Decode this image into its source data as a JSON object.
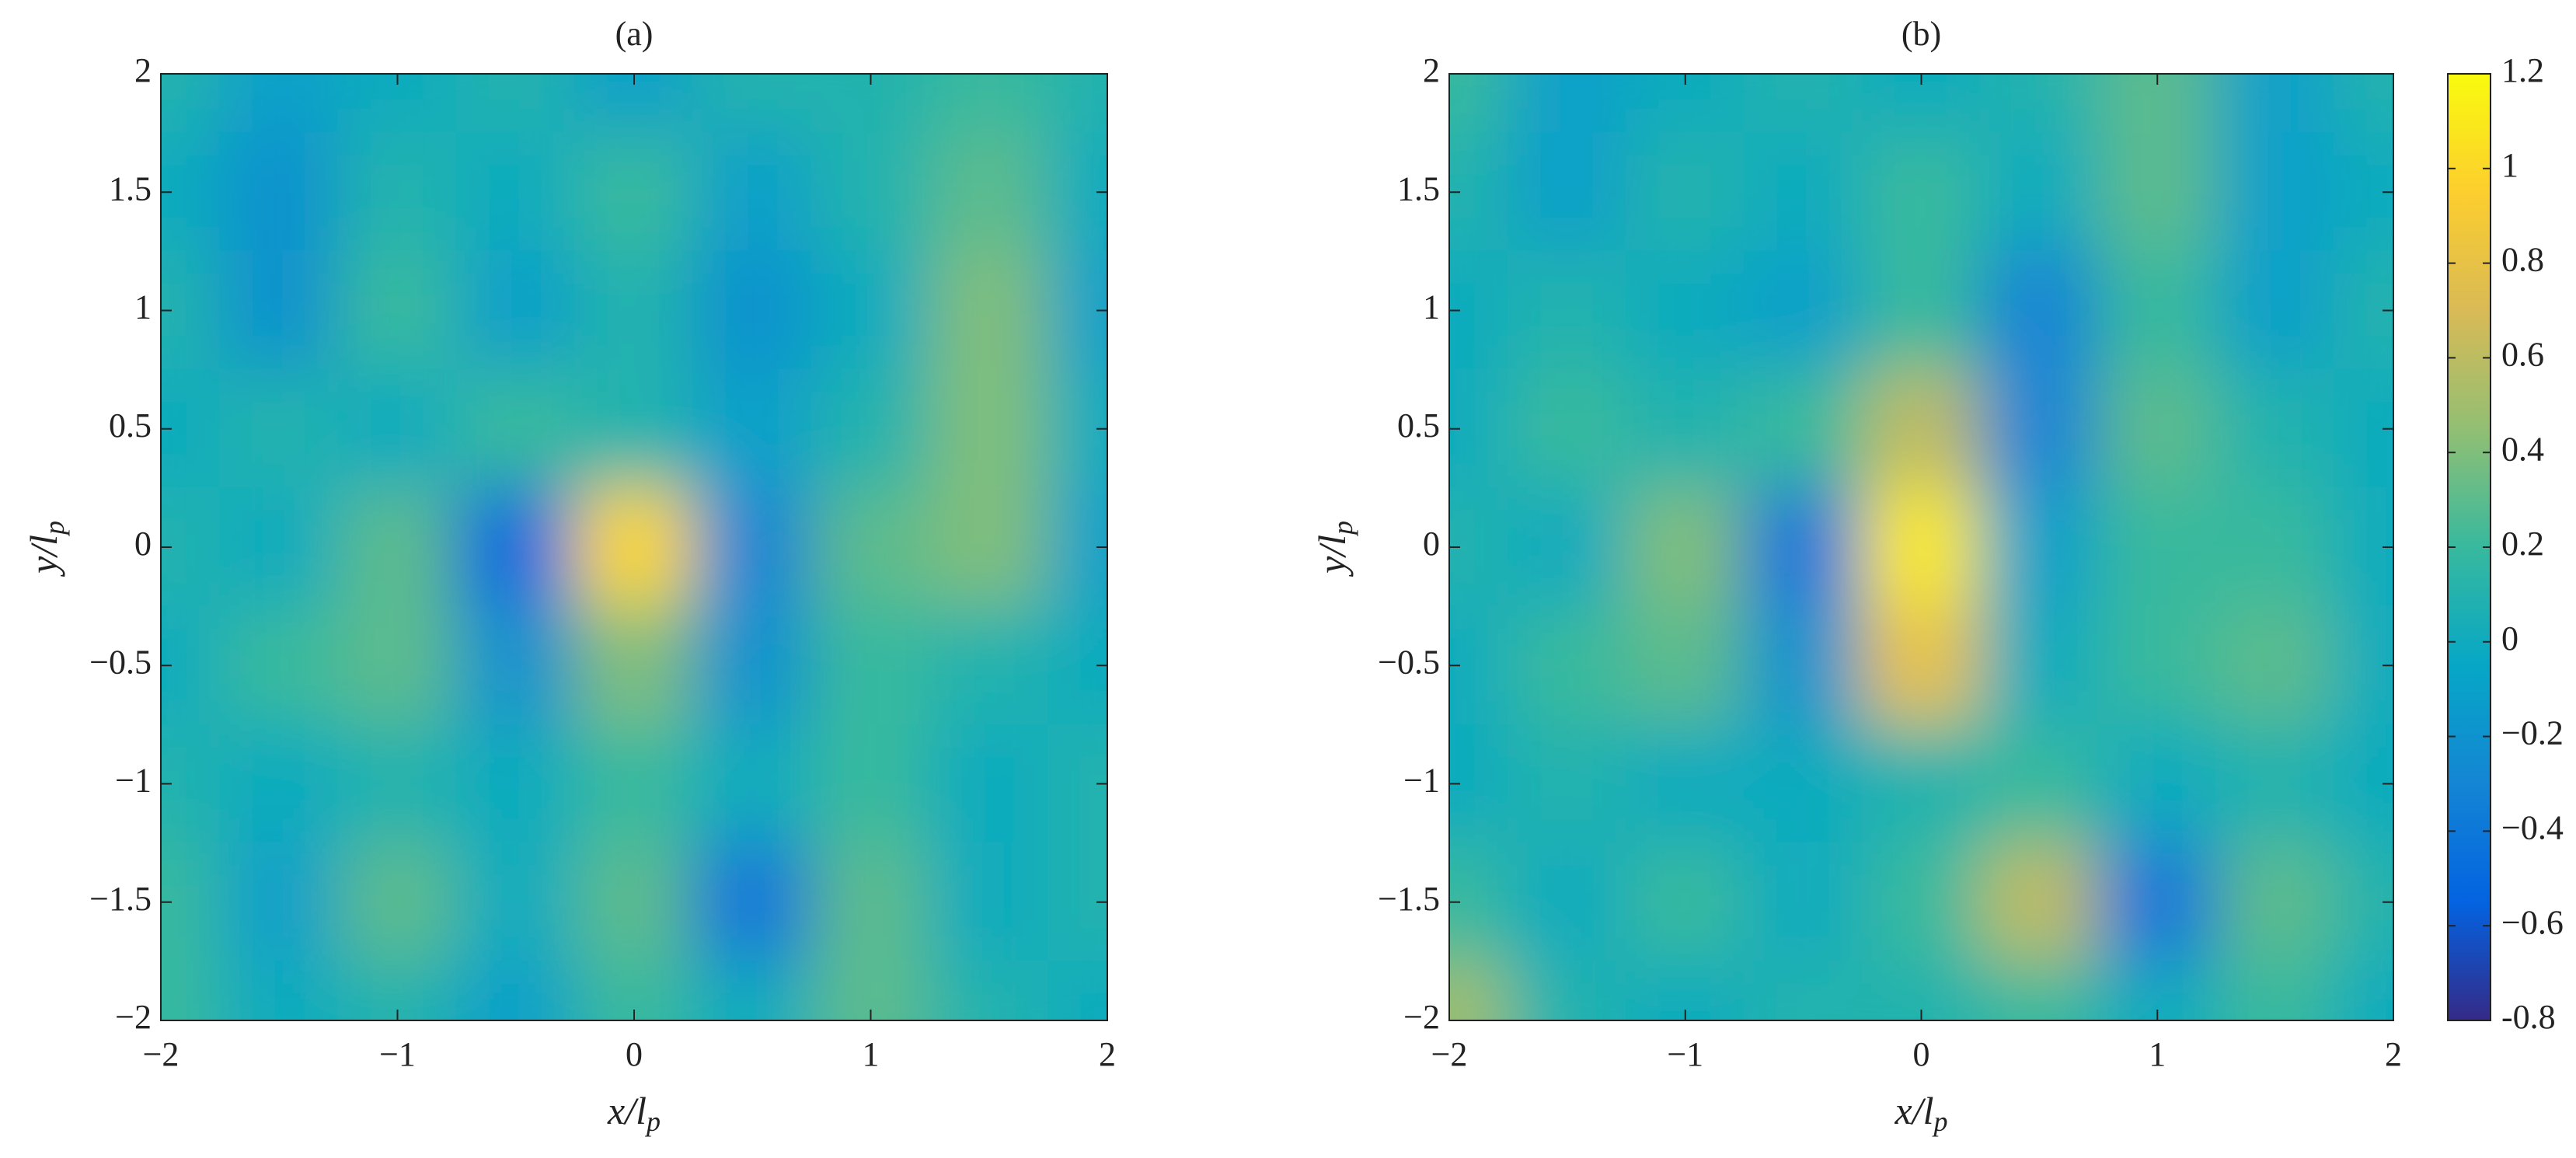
{
  "chart_data": [
    {
      "type": "heatmap",
      "title": "(a)",
      "xlabel": {
        "main": "x/l",
        "sub": "p"
      },
      "ylabel": {
        "main": "y/l",
        "sub": "p"
      },
      "x": [
        -2,
        -1.5,
        -1,
        -0.5,
        0,
        0.5,
        1,
        1.5,
        2
      ],
      "y": [
        2,
        1.5,
        1,
        0.5,
        0,
        -0.5,
        -1,
        -1.5,
        -2
      ],
      "z": [
        [
          0.1,
          -0.1,
          0,
          0.1,
          -0.1,
          0.1,
          0.1,
          0.2,
          0.1
        ],
        [
          0,
          -0.2,
          0.1,
          0,
          0.2,
          -0.1,
          0.1,
          0.3,
          0
        ],
        [
          0.1,
          -0.2,
          0.2,
          -0.1,
          0.1,
          -0.2,
          0,
          0.4,
          -0.1
        ],
        [
          0,
          0.1,
          0,
          0.2,
          0.1,
          -0.1,
          0.1,
          0.4,
          0
        ],
        [
          0.1,
          0,
          0.3,
          -0.5,
          1.0,
          -0.3,
          0.3,
          0.4,
          -0.1
        ],
        [
          0,
          0.2,
          0.3,
          -0.2,
          0.4,
          -0.2,
          0.2,
          0.1,
          0
        ],
        [
          0.1,
          0,
          0.1,
          0,
          0.2,
          0,
          0.2,
          0,
          0.1
        ],
        [
          0.2,
          -0.1,
          0.3,
          0,
          0.3,
          -0.4,
          0.3,
          0,
          0.1
        ],
        [
          0.2,
          0,
          0.1,
          -0.1,
          0.2,
          0,
          0.3,
          0.1,
          0
        ]
      ],
      "xlim": [
        -2,
        2
      ],
      "ylim": [
        -2,
        2
      ],
      "xticks": [
        {
          "value": -2,
          "label": "−2"
        },
        {
          "value": -1,
          "label": "−1"
        },
        0,
        1,
        2
      ],
      "yticks": [
        {
          "value": -2,
          "label": "−2"
        },
        {
          "value": -1.5,
          "label": "−1.5"
        },
        {
          "value": -1,
          "label": "−1"
        },
        {
          "value": -0.5,
          "label": "−0.5"
        },
        0,
        0.5,
        1,
        1.5,
        2
      ]
    },
    {
      "type": "heatmap",
      "title": "(b)",
      "xlabel": {
        "main": "x/l",
        "sub": "p"
      },
      "ylabel": {
        "main": "y/l",
        "sub": "p"
      },
      "x": [
        -2,
        -1.5,
        -1,
        -0.5,
        0,
        0.5,
        1,
        1.5,
        2
      ],
      "y": [
        2,
        1.5,
        1,
        0.5,
        0,
        -0.5,
        -1,
        -1.5,
        -2
      ],
      "z": [
        [
          0.2,
          -0.1,
          0,
          0.1,
          0,
          0.1,
          0.3,
          -0.1,
          0.1
        ],
        [
          0.1,
          -0.1,
          0.1,
          0,
          0.2,
          0,
          0.3,
          -0.1,
          0
        ],
        [
          0,
          0.1,
          0,
          -0.1,
          0.2,
          -0.3,
          0.2,
          -0.1,
          0.1
        ],
        [
          0,
          0.2,
          0.1,
          0.2,
          0.6,
          -0.3,
          0.3,
          0.1,
          0
        ],
        [
          0.1,
          0,
          0.4,
          -0.4,
          1.1,
          -0.1,
          0.2,
          0.2,
          0
        ],
        [
          0,
          0.2,
          0.3,
          -0.2,
          0.8,
          0,
          0.2,
          0.3,
          0
        ],
        [
          0,
          0.1,
          0,
          0,
          0.1,
          0.2,
          0,
          0.1,
          0
        ],
        [
          0.2,
          0,
          0.2,
          0,
          0.2,
          0.6,
          -0.4,
          0.3,
          0.1
        ],
        [
          0.5,
          0.1,
          0,
          0.1,
          0.1,
          0.2,
          0,
          0.2,
          0
        ]
      ],
      "xlim": [
        -2,
        2
      ],
      "ylim": [
        -2,
        2
      ],
      "xticks": [
        {
          "value": -2,
          "label": "−2"
        },
        {
          "value": -1,
          "label": "−1"
        },
        0,
        1,
        2
      ],
      "yticks": [
        {
          "value": -2,
          "label": "−2"
        },
        {
          "value": -1.5,
          "label": "−1.5"
        },
        {
          "value": -1,
          "label": "−1"
        },
        {
          "value": -0.5,
          "label": "−0.5"
        },
        0,
        0.5,
        1,
        1.5,
        2
      ]
    }
  ],
  "colorbar": {
    "lim": [
      -0.8,
      1.2
    ],
    "ticks": [
      {
        "value": -0.8,
        "label": "-0.8"
      },
      {
        "value": -0.6,
        "label": "−0.6"
      },
      {
        "value": -0.4,
        "label": "−0.4"
      },
      {
        "value": -0.2,
        "label": "−0.2"
      },
      0,
      0.2,
      0.4,
      0.6,
      0.8,
      1,
      1.2
    ],
    "colormap": [
      "#352a87",
      "#0363e1",
      "#1485d4",
      "#06a7c6",
      "#38b99e",
      "#92bf73",
      "#d9ba56",
      "#fcce2e",
      "#f9fb0e"
    ]
  }
}
